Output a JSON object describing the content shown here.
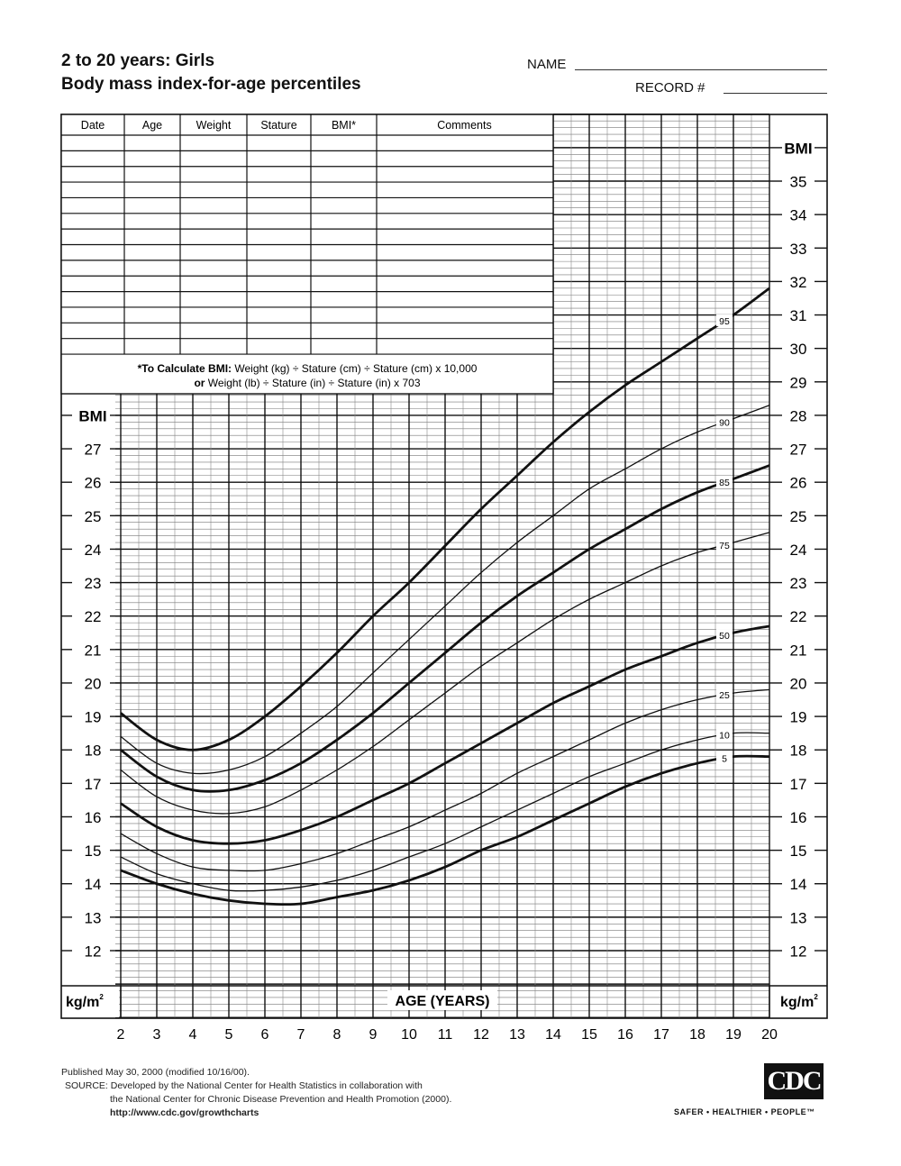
{
  "header": {
    "title_line1": "2 to 20 years: Girls",
    "title_line2": "Body mass index-for-age percentiles",
    "name_label": "NAME",
    "record_label": "RECORD #"
  },
  "record_table": {
    "columns": [
      "Date",
      "Age",
      "Weight",
      "Stature",
      "BMI*",
      "Comments"
    ],
    "formula_line1_bold": "*To Calculate BMI:",
    "formula_line1": " Weight (kg) ÷ Stature (cm) ÷ Stature (cm) x 10,000",
    "formula_line2_bold": "or",
    "formula_line2": " Weight (lb) ÷ Stature (in) ÷ Stature (in) x 703"
  },
  "footer": {
    "published": "Published May 30, 2000 (modified 10/16/00).",
    "source1": "SOURCE: Developed by the National Center for Health Statistics in collaboration with",
    "source2": "the National Center for Chronic Disease Prevention and Health Promotion (2000).",
    "url": "http://www.cdc.gov/growthcharts",
    "logo_text": "CDC",
    "slogan": "SAFER • HEALTHIER • PEOPLE™"
  },
  "chart_data": {
    "type": "line",
    "title": "Body mass index-for-age percentiles",
    "xlabel": "AGE (YEARS)",
    "ylabel": "BMI",
    "yunit": "kg/m²",
    "unit_label": "kg/m",
    "unit_sup": "2",
    "xlim": [
      2,
      20
    ],
    "ylim": [
      10,
      37
    ],
    "x_ticks": [
      2,
      3,
      4,
      5,
      6,
      7,
      8,
      9,
      10,
      11,
      12,
      13,
      14,
      15,
      16,
      17,
      18,
      19,
      20
    ],
    "y_ticks_left": [
      12,
      13,
      14,
      15,
      16,
      17,
      18,
      19,
      20,
      21,
      22,
      23,
      24,
      25,
      26,
      27
    ],
    "y_ticks_right": [
      12,
      13,
      14,
      15,
      16,
      17,
      18,
      19,
      20,
      21,
      22,
      23,
      24,
      25,
      26,
      27,
      28,
      29,
      30,
      31,
      32,
      33,
      34,
      35
    ],
    "grid": true,
    "x": [
      2,
      3,
      4,
      5,
      6,
      7,
      8,
      9,
      10,
      11,
      12,
      13,
      14,
      15,
      16,
      17,
      18,
      19,
      20
    ],
    "series": [
      {
        "name": "95",
        "bold": true,
        "values": [
          19.1,
          18.3,
          18.0,
          18.3,
          19.0,
          19.9,
          20.9,
          22.0,
          23.0,
          24.1,
          25.2,
          26.2,
          27.2,
          28.1,
          28.9,
          29.6,
          30.3,
          31.0,
          31.8
        ]
      },
      {
        "name": "90",
        "bold": false,
        "values": [
          18.4,
          17.6,
          17.3,
          17.4,
          17.8,
          18.5,
          19.3,
          20.3,
          21.3,
          22.3,
          23.3,
          24.2,
          25.0,
          25.8,
          26.4,
          27.0,
          27.5,
          27.9,
          28.3
        ]
      },
      {
        "name": "85",
        "bold": true,
        "values": [
          18.0,
          17.2,
          16.8,
          16.8,
          17.1,
          17.6,
          18.3,
          19.1,
          20.0,
          20.9,
          21.8,
          22.6,
          23.3,
          24.0,
          24.6,
          25.2,
          25.7,
          26.1,
          26.5
        ]
      },
      {
        "name": "75",
        "bold": false,
        "values": [
          17.4,
          16.6,
          16.2,
          16.1,
          16.3,
          16.8,
          17.4,
          18.1,
          18.9,
          19.7,
          20.5,
          21.2,
          21.9,
          22.5,
          23.0,
          23.5,
          23.9,
          24.2,
          24.5
        ]
      },
      {
        "name": "50",
        "bold": true,
        "values": [
          16.4,
          15.7,
          15.3,
          15.2,
          15.3,
          15.6,
          16.0,
          16.5,
          17.0,
          17.6,
          18.2,
          18.8,
          19.4,
          19.9,
          20.4,
          20.8,
          21.2,
          21.5,
          21.7
        ]
      },
      {
        "name": "25",
        "bold": false,
        "values": [
          15.5,
          14.9,
          14.5,
          14.4,
          14.4,
          14.6,
          14.9,
          15.3,
          15.7,
          16.2,
          16.7,
          17.3,
          17.8,
          18.3,
          18.8,
          19.2,
          19.5,
          19.7,
          19.8
        ]
      },
      {
        "name": "10",
        "bold": false,
        "values": [
          14.8,
          14.3,
          14.0,
          13.8,
          13.8,
          13.9,
          14.1,
          14.4,
          14.8,
          15.2,
          15.7,
          16.2,
          16.7,
          17.2,
          17.6,
          18.0,
          18.3,
          18.5,
          18.5
        ]
      },
      {
        "name": "5",
        "bold": true,
        "values": [
          14.4,
          14.0,
          13.7,
          13.5,
          13.4,
          13.4,
          13.6,
          13.8,
          14.1,
          14.5,
          15.0,
          15.4,
          15.9,
          16.4,
          16.9,
          17.3,
          17.6,
          17.8,
          17.8
        ]
      }
    ]
  }
}
